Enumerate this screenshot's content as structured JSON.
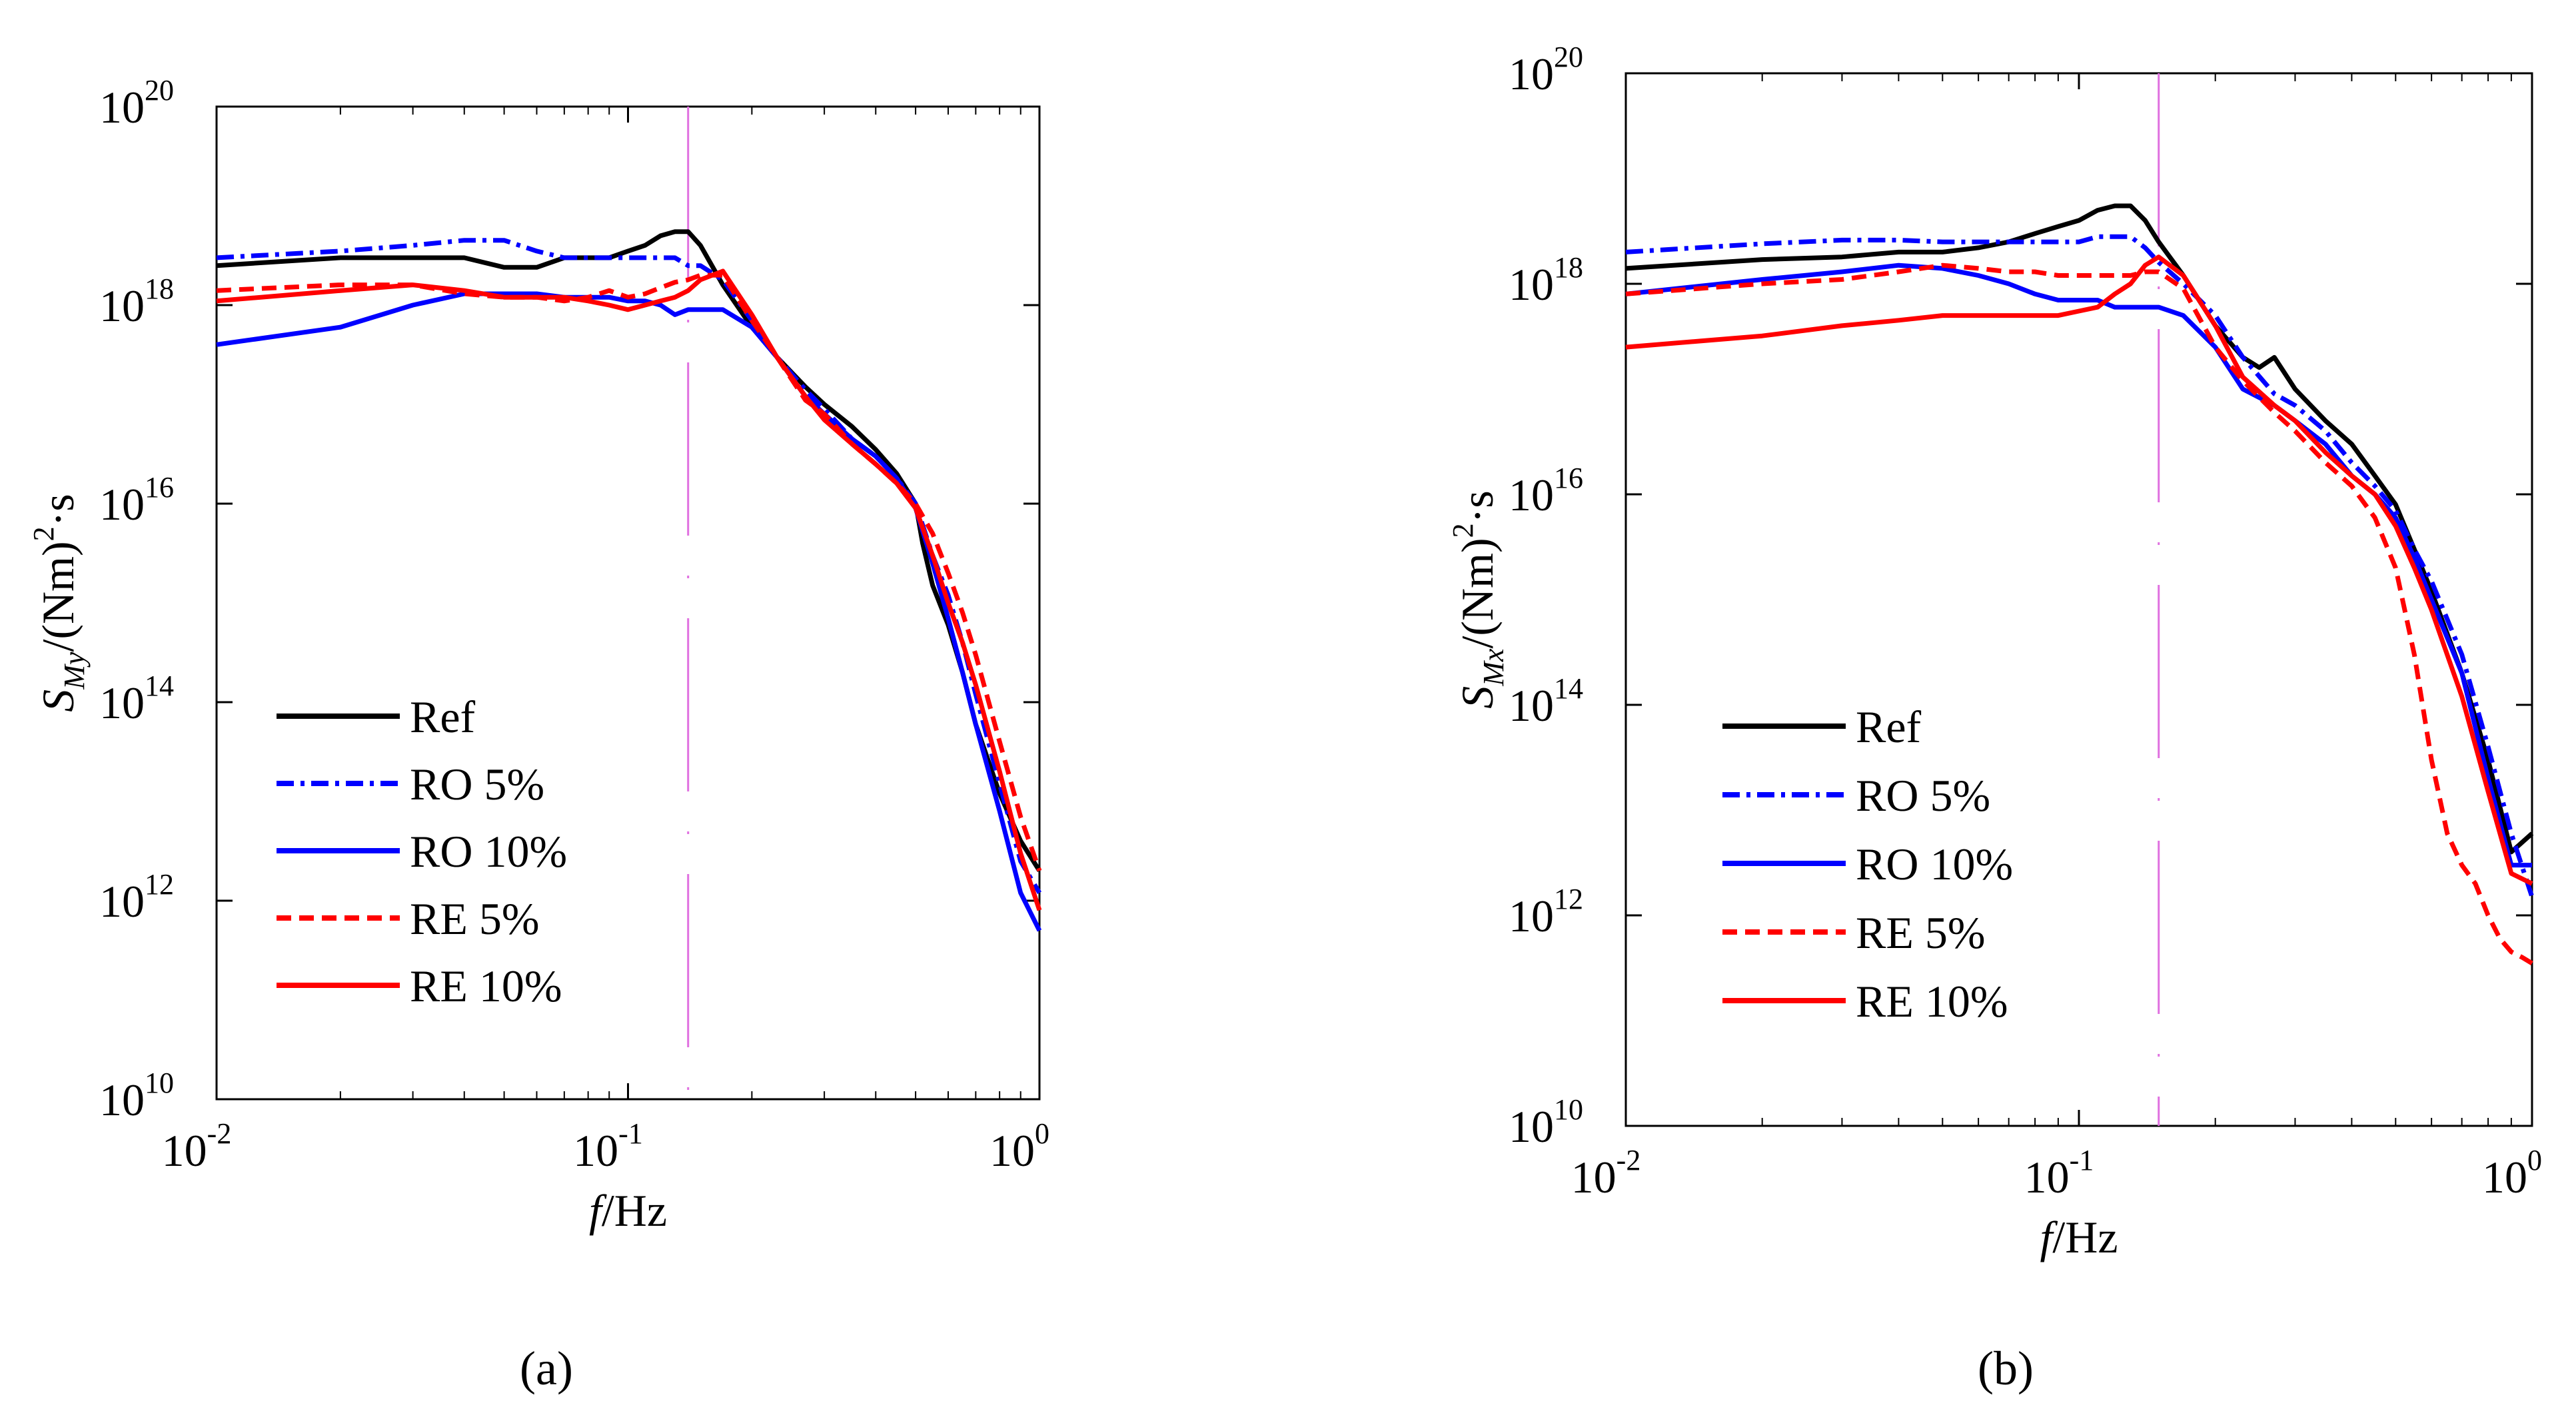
{
  "figure": {
    "panel_labels": [
      "(a)",
      "(b)"
    ],
    "legend": [
      {
        "label": "Ref",
        "color": "#000000",
        "dash": "solid"
      },
      {
        "label": "RO 5%",
        "color": "#0000ff",
        "dash": "dashdot"
      },
      {
        "label": "RO 10%",
        "color": "#0000ff",
        "dash": "solid"
      },
      {
        "label": "RE 5%",
        "color": "#ff0000",
        "dash": "dashed"
      },
      {
        "label": "RE 10%",
        "color": "#ff0000",
        "dash": "solid"
      }
    ]
  },
  "chart_data": [
    {
      "type": "line",
      "panel": "(a)",
      "xscale": "log",
      "yscale": "log",
      "xlabel_italic": "f",
      "xlabel_rest": "/Hz",
      "ylabel": "S_My/(Nm)²·s",
      "ylabel_parts": {
        "S": "S",
        "sub": "My",
        "mid": "/(Nm)",
        "sup": "2",
        "end": "·s"
      },
      "xlim": [
        0.01,
        1
      ],
      "ylim": [
        10000000000.0,
        1e+20
      ],
      "x_ticks": [
        {
          "base": "10",
          "exp": "-2"
        },
        {
          "base": "10",
          "exp": "-1"
        },
        {
          "base": "10",
          "exp": "0"
        }
      ],
      "y_ticks": [
        {
          "base": "10",
          "exp": "10"
        },
        {
          "base": "10",
          "exp": "12"
        },
        {
          "base": "10",
          "exp": "14"
        },
        {
          "base": "10",
          "exp": "16"
        },
        {
          "base": "10",
          "exp": "18"
        },
        {
          "base": "10",
          "exp": "20"
        }
      ],
      "vline_x": 0.14,
      "vline_color": "#e070e0",
      "series": [
        {
          "name": "Ref",
          "x": [
            0.01,
            0.02,
            0.03,
            0.04,
            0.05,
            0.06,
            0.07,
            0.08,
            0.09,
            0.1,
            0.11,
            0.12,
            0.13,
            0.14,
            0.15,
            0.17,
            0.2,
            0.23,
            0.27,
            0.3,
            0.35,
            0.4,
            0.45,
            0.5,
            0.52,
            0.55,
            0.6,
            0.65,
            0.7,
            0.8,
            0.9,
            1.0
          ],
          "y": [
            2.5e+18,
            3e+18,
            3e+18,
            3e+18,
            2.4e+18,
            2.4e+18,
            3e+18,
            3e+18,
            3e+18,
            3.5e+18,
            4e+18,
            5e+18,
            5.5e+18,
            5.5e+18,
            4e+18,
            1.6e+18,
            6e+17,
            3e+17,
            1.5e+17,
            1e+17,
            6e+16,
            3.5e+16,
            2e+16,
            1e+16,
            4000000000000000.0,
            1500000000000000.0,
            600000000000000.0,
            200000000000000.0,
            60000000000000.0,
            12000000000000.0,
            4000000000000.0,
            2000000000000.0
          ]
        },
        {
          "name": "RO 5%",
          "x": [
            0.01,
            0.02,
            0.03,
            0.04,
            0.05,
            0.06,
            0.07,
            0.08,
            0.09,
            0.1,
            0.11,
            0.12,
            0.13,
            0.14,
            0.15,
            0.17,
            0.2,
            0.23,
            0.27,
            0.3,
            0.35,
            0.4,
            0.45,
            0.5,
            0.55,
            0.6,
            0.65,
            0.7,
            0.8,
            0.9,
            1.0
          ],
          "y": [
            3e+18,
            3.5e+18,
            4e+18,
            4.5e+18,
            4.5e+18,
            3.5e+18,
            3e+18,
            3e+18,
            3e+18,
            3e+18,
            3e+18,
            3e+18,
            3e+18,
            2.5e+18,
            2.5e+18,
            1.8e+18,
            7e+17,
            3e+17,
            1.4e+17,
            9e+16,
            4.5e+16,
            3e+16,
            1.8e+16,
            1e+16,
            3000000000000000.0,
            1200000000000000.0,
            400000000000000.0,
            120000000000000.0,
            15000000000000.0,
            2500000000000.0,
            1200000000000.0
          ]
        },
        {
          "name": "RO 10%",
          "x": [
            0.01,
            0.02,
            0.03,
            0.04,
            0.05,
            0.06,
            0.07,
            0.08,
            0.09,
            0.1,
            0.11,
            0.12,
            0.13,
            0.14,
            0.15,
            0.17,
            0.2,
            0.23,
            0.27,
            0.3,
            0.35,
            0.4,
            0.45,
            0.5,
            0.55,
            0.6,
            0.65,
            0.7,
            0.8,
            0.9,
            1.0
          ],
          "y": [
            4e+17,
            6e+17,
            1e+18,
            1.3e+18,
            1.3e+18,
            1.3e+18,
            1.2e+18,
            1.2e+18,
            1.2e+18,
            1.1e+18,
            1.1e+18,
            1e+18,
            8e+17,
            9e+17,
            9e+17,
            9e+17,
            6e+17,
            3e+17,
            1.2e+17,
            8e+16,
            4.5e+16,
            3e+16,
            1.8e+16,
            9000000000000000.0,
            2500000000000000.0,
            700000000000000.0,
            200000000000000.0,
            60000000000000.0,
            8000000000000.0,
            1200000000000.0,
            500000000000.0
          ]
        },
        {
          "name": "RE 5%",
          "x": [
            0.01,
            0.02,
            0.03,
            0.04,
            0.05,
            0.06,
            0.07,
            0.08,
            0.09,
            0.1,
            0.11,
            0.12,
            0.13,
            0.14,
            0.15,
            0.17,
            0.2,
            0.23,
            0.27,
            0.3,
            0.35,
            0.4,
            0.45,
            0.5,
            0.55,
            0.6,
            0.65,
            0.7,
            0.8,
            0.9,
            1.0
          ],
          "y": [
            1.4e+18,
            1.6e+18,
            1.6e+18,
            1.3e+18,
            1.2e+18,
            1.2e+18,
            1.1e+18,
            1.2e+18,
            1.4e+18,
            1.2e+18,
            1.3e+18,
            1.5e+18,
            1.7e+18,
            1.8e+18,
            2e+18,
            2e+18,
            7e+17,
            3e+17,
            1.1e+17,
            8e+16,
            4e+16,
            2.5e+16,
            1.6e+16,
            1e+16,
            5000000000000000.0,
            2000000000000000.0,
            800000000000000.0,
            300000000000000.0,
            40000000000000.0,
            7000000000000.0,
            2000000000000.0
          ]
        },
        {
          "name": "RE 10%",
          "x": [
            0.01,
            0.02,
            0.03,
            0.04,
            0.05,
            0.06,
            0.07,
            0.08,
            0.09,
            0.1,
            0.11,
            0.12,
            0.13,
            0.14,
            0.15,
            0.17,
            0.2,
            0.23,
            0.27,
            0.3,
            0.35,
            0.4,
            0.45,
            0.5,
            0.55,
            0.6,
            0.65,
            0.7,
            0.8,
            0.9,
            1.0
          ],
          "y": [
            1.1e+18,
            1.4e+18,
            1.6e+18,
            1.4e+18,
            1.2e+18,
            1.2e+18,
            1.2e+18,
            1.1e+18,
            1e+18,
            9e+17,
            1e+18,
            1.1e+18,
            1.2e+18,
            1.4e+18,
            1.8e+18,
            2.2e+18,
            8e+17,
            3e+17,
            1.2e+17,
            7e+16,
            4e+16,
            2.5e+16,
            1.6e+16,
            9000000000000000.0,
            3000000000000000.0,
            1000000000000000.0,
            400000000000000.0,
            150000000000000.0,
            20000000000000.0,
            3000000000000.0,
            800000000000.0
          ]
        }
      ]
    },
    {
      "type": "line",
      "panel": "(b)",
      "xscale": "log",
      "yscale": "log",
      "xlabel_italic": "f",
      "xlabel_rest": "/Hz",
      "ylabel": "S_Mx/(Nm)²·s",
      "ylabel_parts": {
        "S": "S",
        "sub": "Mx",
        "mid": "/(Nm)",
        "sup": "2",
        "end": "·s"
      },
      "xlim": [
        0.01,
        1
      ],
      "ylim": [
        10000000000.0,
        1e+20
      ],
      "x_ticks": [
        {
          "base": "10",
          "exp": "-2"
        },
        {
          "base": "10",
          "exp": "-1"
        },
        {
          "base": "10",
          "exp": "0"
        }
      ],
      "y_ticks": [
        {
          "base": "10",
          "exp": "10"
        },
        {
          "base": "10",
          "exp": "12"
        },
        {
          "base": "10",
          "exp": "14"
        },
        {
          "base": "10",
          "exp": "16"
        },
        {
          "base": "10",
          "exp": "18"
        },
        {
          "base": "10",
          "exp": "20"
        }
      ],
      "vline_x": 0.15,
      "vline_color": "#e070e0",
      "series": [
        {
          "name": "Ref",
          "x": [
            0.01,
            0.02,
            0.03,
            0.04,
            0.05,
            0.06,
            0.07,
            0.08,
            0.09,
            0.1,
            0.11,
            0.12,
            0.13,
            0.14,
            0.15,
            0.17,
            0.2,
            0.23,
            0.25,
            0.27,
            0.3,
            0.35,
            0.4,
            0.45,
            0.5,
            0.55,
            0.6,
            0.7,
            0.8,
            0.9,
            1.0
          ],
          "y": [
            1.4e+18,
            1.7e+18,
            1.8e+18,
            2e+18,
            2e+18,
            2.2e+18,
            2.5e+18,
            3e+18,
            3.5e+18,
            4e+18,
            5e+18,
            5.5e+18,
            5.5e+18,
            4e+18,
            2.5e+18,
            1.2e+18,
            4e+17,
            2e+17,
            1.6e+17,
            2e+17,
            1e+17,
            5e+16,
            3e+16,
            1.5e+16,
            8000000000000000.0,
            3000000000000000.0,
            1200000000000000.0,
            200000000000000.0,
            30000000000000.0,
            4000000000000.0,
            6000000000000.0
          ]
        },
        {
          "name": "RO 5%",
          "x": [
            0.01,
            0.02,
            0.03,
            0.04,
            0.05,
            0.06,
            0.07,
            0.08,
            0.09,
            0.1,
            0.11,
            0.12,
            0.13,
            0.14,
            0.15,
            0.17,
            0.2,
            0.23,
            0.27,
            0.3,
            0.35,
            0.4,
            0.45,
            0.5,
            0.55,
            0.6,
            0.7,
            0.8,
            0.9,
            1.0
          ],
          "y": [
            2e+18,
            2.4e+18,
            2.6e+18,
            2.6e+18,
            2.5e+18,
            2.5e+18,
            2.5e+18,
            2.5e+18,
            2.5e+18,
            2.5e+18,
            2.8e+18,
            2.8e+18,
            2.8e+18,
            2.2e+18,
            1.6e+18,
            1e+18,
            5e+17,
            2e+17,
            9e+16,
            7e+16,
            4e+16,
            2e+16,
            1.2e+16,
            7000000000000000.0,
            3000000000000000.0,
            1500000000000000.0,
            300000000000000.0,
            40000000000000.0,
            6000000000000.0,
            1500000000000.0
          ]
        },
        {
          "name": "RO 10%",
          "x": [
            0.01,
            0.02,
            0.03,
            0.04,
            0.05,
            0.06,
            0.07,
            0.08,
            0.09,
            0.1,
            0.11,
            0.12,
            0.13,
            0.14,
            0.15,
            0.17,
            0.2,
            0.23,
            0.27,
            0.3,
            0.35,
            0.4,
            0.45,
            0.5,
            0.55,
            0.6,
            0.7,
            0.8,
            0.9,
            1.0
          ],
          "y": [
            8e+17,
            1.1e+18,
            1.3e+18,
            1.5e+18,
            1.4e+18,
            1.2e+18,
            1e+18,
            8e+17,
            7e+17,
            7e+17,
            7e+17,
            6e+17,
            6e+17,
            6e+17,
            6e+17,
            5e+17,
            2.5e+17,
            1e+17,
            7e+16,
            5e+16,
            3e+16,
            1.5e+16,
            1e+16,
            6000000000000000.0,
            2500000000000000.0,
            1000000000000000.0,
            200000000000000.0,
            20000000000000.0,
            3000000000000.0,
            3000000000000.0
          ]
        },
        {
          "name": "RE 5%",
          "x": [
            0.01,
            0.02,
            0.03,
            0.04,
            0.05,
            0.06,
            0.07,
            0.08,
            0.09,
            0.1,
            0.11,
            0.12,
            0.13,
            0.14,
            0.15,
            0.17,
            0.2,
            0.23,
            0.27,
            0.3,
            0.35,
            0.4,
            0.45,
            0.5,
            0.55,
            0.6,
            0.65,
            0.7,
            0.75,
            0.8,
            0.85,
            0.9,
            0.95,
            1.0
          ],
          "y": [
            8e+17,
            1e+18,
            1.1e+18,
            1.3e+18,
            1.5e+18,
            1.4e+18,
            1.3e+18,
            1.3e+18,
            1.2e+18,
            1.2e+18,
            1.2e+18,
            1.2e+18,
            1.2e+18,
            1.3e+18,
            1.3e+18,
            9e+17,
            2.5e+17,
            1.2e+17,
            6e+16,
            4e+16,
            2e+16,
            1.2e+16,
            6000000000000000.0,
            2000000000000000.0,
            300000000000000.0,
            30000000000000.0,
            6000000000000.0,
            3000000000000.0,
            2000000000000.0,
            1000000000000.0,
            600000000000.0,
            450000000000.0,
            400000000000.0,
            350000000000.0
          ]
        },
        {
          "name": "RE 10%",
          "x": [
            0.01,
            0.02,
            0.03,
            0.04,
            0.05,
            0.06,
            0.07,
            0.08,
            0.09,
            0.1,
            0.11,
            0.12,
            0.13,
            0.14,
            0.15,
            0.17,
            0.2,
            0.23,
            0.27,
            0.3,
            0.35,
            0.4,
            0.45,
            0.5,
            0.55,
            0.6,
            0.7,
            0.8,
            0.9,
            1.0
          ],
          "y": [
            2.5e+17,
            3.2e+17,
            4e+17,
            4.5e+17,
            5e+17,
            5e+17,
            5e+17,
            5e+17,
            5e+17,
            5.5e+17,
            6e+17,
            8e+17,
            1e+18,
            1.5e+18,
            1.8e+18,
            1.2e+18,
            4e+17,
            1.3e+17,
            7e+16,
            5e+16,
            2.5e+16,
            1.5e+16,
            1e+16,
            5000000000000000.0,
            2000000000000000.0,
            800000000000000.0,
            120000000000000.0,
            15000000000000.0,
            2500000000000.0,
            2000000000000.0
          ]
        }
      ]
    }
  ]
}
